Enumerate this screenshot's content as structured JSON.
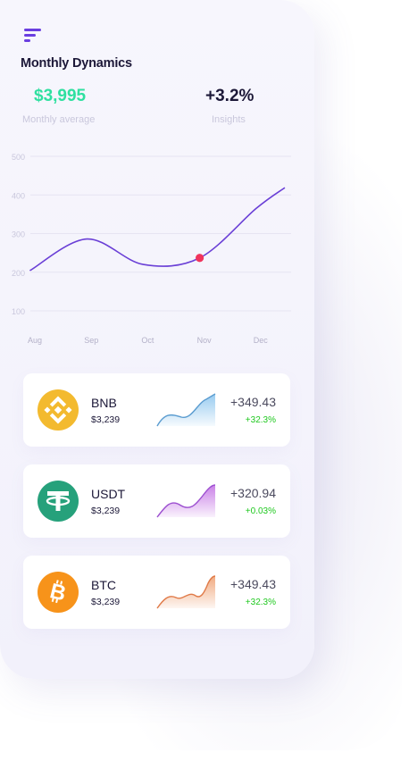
{
  "header": {
    "title": "Monthly Dynamics"
  },
  "stats": {
    "average_value": "$3,995",
    "average_label": "Monthly average",
    "insights_value": "+3.2%",
    "insights_label": "Insights"
  },
  "chart_data": {
    "type": "line",
    "x": [
      "Aug",
      "Sep",
      "Oct",
      "Nov",
      "Dec"
    ],
    "y_ticks": [
      "500",
      "400",
      "300",
      "200",
      "100"
    ],
    "ylim": [
      100,
      500
    ],
    "series": [
      {
        "points": [
          [
            0,
            205
          ],
          [
            1,
            286
          ],
          [
            2,
            220
          ],
          [
            3,
            237
          ],
          [
            4,
            365
          ],
          [
            4.5,
            418
          ]
        ]
      }
    ],
    "highlight": {
      "x": 3,
      "y": 237
    },
    "colors": {
      "line": "#6a3fd6",
      "marker": "#f0345c"
    },
    "grid": true
  },
  "assets": [
    {
      "name": "BNB",
      "price": "$3,239",
      "change": "+349.43",
      "percent": "+32.3%",
      "icon": "bnb-icon",
      "color": "#f3ba2f",
      "spark_color": "#8cc5ee"
    },
    {
      "name": "USDT",
      "price": "$3,239",
      "change": "+320.94",
      "percent": "+0.03%",
      "icon": "tether-icon",
      "color": "#26a17b",
      "spark_color": "#c77be6"
    },
    {
      "name": "BTC",
      "price": "$3,239",
      "change": "+349.43",
      "percent": "+32.3%",
      "icon": "bitcoin-icon",
      "color": "#f7931a",
      "spark_color": "#f0a67a"
    }
  ]
}
